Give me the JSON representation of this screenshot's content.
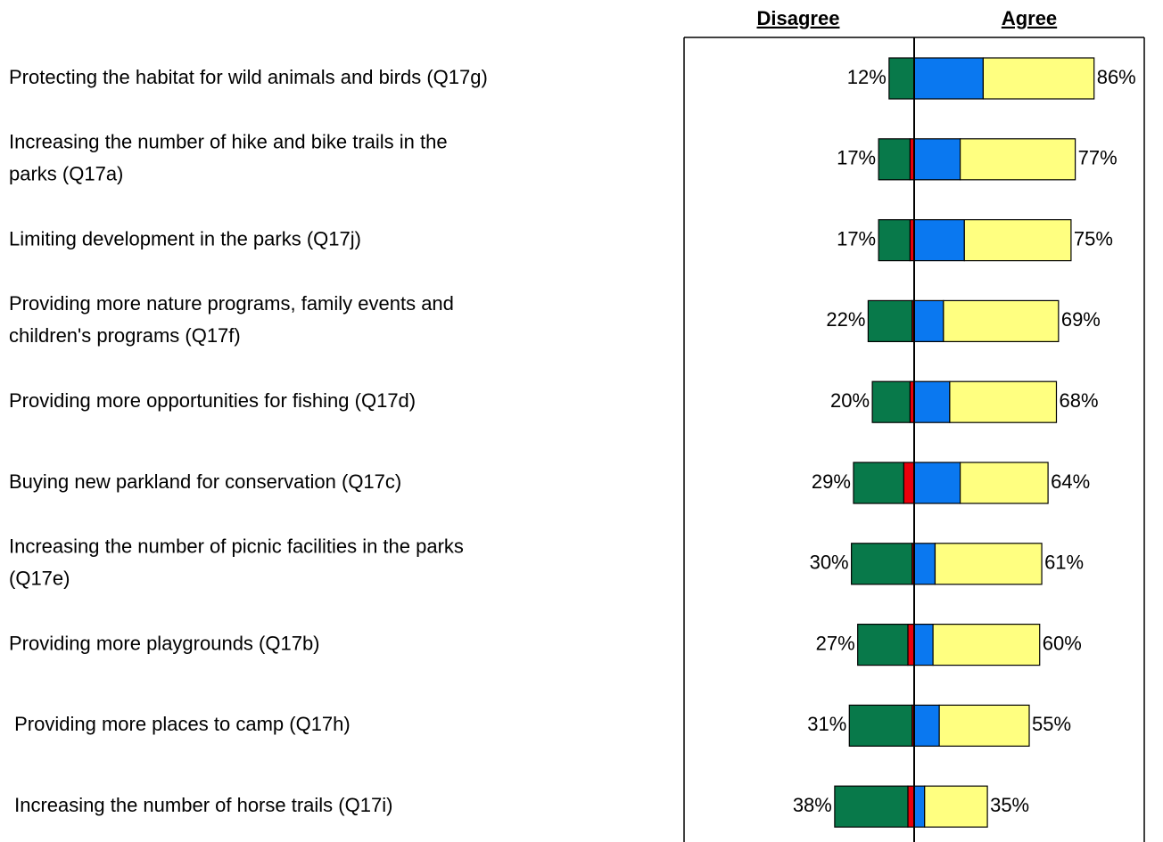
{
  "chart_data": {
    "type": "diverging_bar",
    "headers": {
      "left": "Disagree",
      "right": "Agree"
    },
    "categories": [
      [
        "Protecting the habitat for wild animals and birds (Q17g)"
      ],
      [
        "Increasing the number of hike and bike trails in the",
        "parks (Q17a)"
      ],
      [
        "Limiting development in the parks (Q17j)"
      ],
      [
        "Providing more nature programs, family events and",
        "children's programs (Q17f)"
      ],
      [
        "Providing more opportunities for fishing (Q17d)"
      ],
      [
        "Buying new parkland for conservation (Q17c)"
      ],
      [
        "Increasing the number of picnic facilities in the parks",
        "(Q17e)"
      ],
      [
        "Providing more playgrounds (Q17b)"
      ],
      [
        " Providing more places to camp (Q17h)"
      ],
      [
        " Increasing the number of horse trails (Q17i)"
      ]
    ],
    "series": [
      {
        "side": "left",
        "color": "#e8000b",
        "values": [
          0,
          2,
          2,
          1,
          2,
          5,
          1,
          3,
          1,
          3
        ]
      },
      {
        "side": "left",
        "color": "#08794a",
        "values": [
          12,
          15,
          15,
          21,
          18,
          24,
          29,
          24,
          30,
          35
        ]
      },
      {
        "side": "right",
        "color": "#0a78f0",
        "values": [
          33,
          22,
          24,
          14,
          17,
          22,
          10,
          9,
          12,
          5
        ]
      },
      {
        "side": "right",
        "color": "#ffff80",
        "values": [
          53,
          55,
          51,
          55,
          51,
          42,
          51,
          51,
          43,
          30
        ]
      }
    ],
    "left_labels": [
      "12%",
      "17%",
      "17%",
      "22%",
      "20%",
      "29%",
      "30%",
      "27%",
      "31%",
      "38%"
    ],
    "right_labels": [
      "86%",
      "77%",
      "75%",
      "69%",
      "68%",
      "64%",
      "61%",
      "60%",
      "55%",
      "35%"
    ],
    "xlim": [
      -110,
      110
    ]
  }
}
